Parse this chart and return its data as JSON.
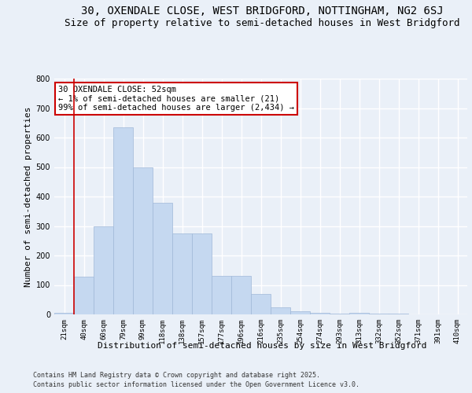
{
  "title_line1": "30, OXENDALE CLOSE, WEST BRIDGFORD, NOTTINGHAM, NG2 6SJ",
  "title_line2": "Size of property relative to semi-detached houses in West Bridgford",
  "xlabel": "Distribution of semi-detached houses by size in West Bridgford",
  "ylabel": "Number of semi-detached properties",
  "categories": [
    "21sqm",
    "40sqm",
    "60sqm",
    "79sqm",
    "99sqm",
    "118sqm",
    "138sqm",
    "157sqm",
    "177sqm",
    "196sqm",
    "216sqm",
    "235sqm",
    "254sqm",
    "274sqm",
    "293sqm",
    "313sqm",
    "332sqm",
    "352sqm",
    "371sqm",
    "391sqm",
    "410sqm"
  ],
  "values": [
    5,
    128,
    300,
    635,
    500,
    380,
    275,
    275,
    130,
    130,
    70,
    25,
    10,
    5,
    2,
    5,
    2,
    2,
    1,
    1,
    1
  ],
  "bar_color": "#c5d8f0",
  "bar_edge_color": "#a0b8d8",
  "vline_color": "#cc0000",
  "annotation_text": "30 OXENDALE CLOSE: 52sqm\n← 1% of semi-detached houses are smaller (21)\n99% of semi-detached houses are larger (2,434) →",
  "annotation_box_color": "#ffffff",
  "annotation_box_edge": "#cc0000",
  "ylim": [
    0,
    800
  ],
  "yticks": [
    0,
    100,
    200,
    300,
    400,
    500,
    600,
    700,
    800
  ],
  "background_color": "#eaf0f8",
  "plot_bg_color": "#eaf0f8",
  "grid_color": "#ffffff",
  "footer_line1": "Contains HM Land Registry data © Crown copyright and database right 2025.",
  "footer_line2": "Contains public sector information licensed under the Open Government Licence v3.0.",
  "title_fontsize": 10,
  "subtitle_fontsize": 9,
  "axis_label_fontsize": 8,
  "tick_fontsize": 6.5,
  "annotation_fontsize": 7.5,
  "footer_fontsize": 6
}
